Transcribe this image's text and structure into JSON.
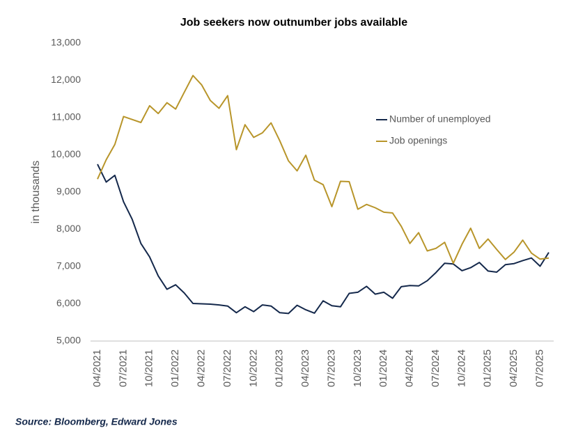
{
  "chart_data": {
    "type": "line",
    "title": "Job seekers now outnumber jobs available",
    "y_label": "in thousands",
    "source": "Source: Bloomberg, Edward Jones",
    "categories": [
      "04/2021",
      null,
      null,
      "07/2021",
      null,
      null,
      "10/2021",
      null,
      null,
      "01/2022",
      null,
      null,
      "04/2022",
      null,
      null,
      "07/2022",
      null,
      null,
      "10/2022",
      null,
      null,
      "01/2023",
      null,
      null,
      "04/2023",
      null,
      null,
      "07/2023",
      null,
      null,
      "10/2023",
      null,
      null,
      "01/2024",
      null,
      null,
      "04/2024",
      null,
      null,
      "07/2024",
      null,
      null,
      "10/2024",
      null,
      null,
      "01/2025",
      null,
      null,
      "04/2025",
      null,
      null,
      "07/2025",
      null
    ],
    "series": [
      {
        "name": "Number of unemployed",
        "color": "#14284b",
        "values": [
          9750,
          9270,
          9450,
          8740,
          8270,
          7620,
          7260,
          6750,
          6390,
          6510,
          6290,
          6010,
          6000,
          5990,
          5970,
          5940,
          5760,
          5920,
          5790,
          5970,
          5940,
          5760,
          5740,
          5960,
          5840,
          5750,
          6080,
          5950,
          5920,
          6280,
          6310,
          6470,
          6260,
          6310,
          6150,
          6460,
          6490,
          6480,
          6620,
          6840,
          7090,
          7070,
          6890,
          6970,
          7110,
          6880,
          6850,
          7050,
          7080,
          7160,
          7230,
          7010,
          7380
        ]
      },
      {
        "name": "Job openings",
        "color": "#b8952a",
        "values": [
          9350,
          9870,
          10280,
          11030,
          10950,
          10870,
          11320,
          11110,
          11400,
          11230,
          11680,
          12130,
          11880,
          11460,
          11250,
          11590,
          10140,
          10810,
          10470,
          10590,
          10860,
          10380,
          9840,
          9570,
          9990,
          9320,
          9200,
          8610,
          9290,
          9280,
          8540,
          8670,
          8580,
          8460,
          8440,
          8080,
          7620,
          7910,
          7420,
          7490,
          7650,
          7090,
          7600,
          8030,
          7490,
          7740,
          7460,
          7190,
          7390,
          7710,
          7360,
          7200,
          7230
        ]
      }
    ],
    "ylim": [
      5000,
      13000
    ],
    "yticks": [
      {
        "value": 5000,
        "label": "5,000"
      },
      {
        "value": 6000,
        "label": "6,000"
      },
      {
        "value": 7000,
        "label": "7,000"
      },
      {
        "value": 8000,
        "label": "8,000"
      },
      {
        "value": 9000,
        "label": "9,000"
      },
      {
        "value": 10000,
        "label": "10,000"
      },
      {
        "value": 11000,
        "label": "11,000"
      },
      {
        "value": 12000,
        "label": "12,000"
      },
      {
        "value": 13000,
        "label": "13,000"
      }
    ],
    "grid": false
  }
}
